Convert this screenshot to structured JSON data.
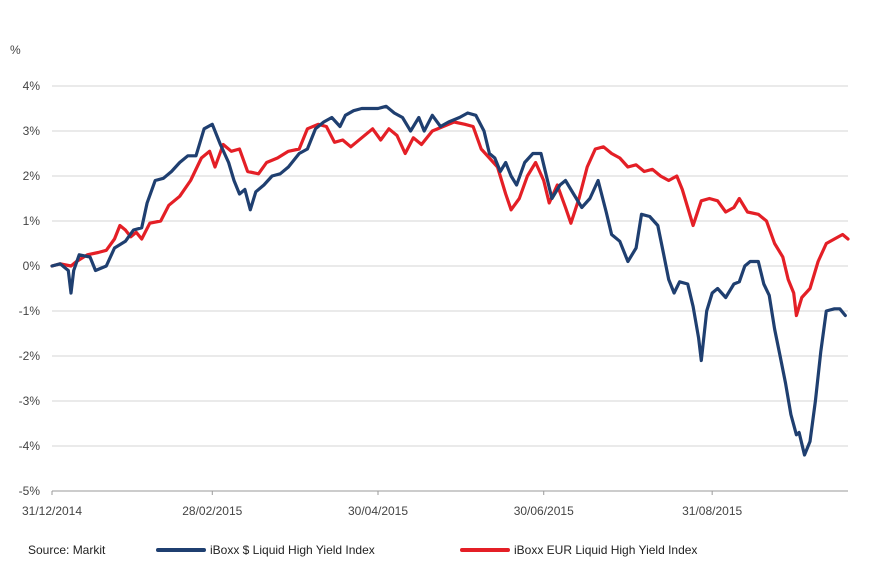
{
  "chart_data": {
    "type": "line",
    "title": "",
    "ylabel": "",
    "unit_label": "%",
    "ylim": [
      -5,
      4
    ],
    "yticks": [
      "4%",
      "3%",
      "2%",
      "1%",
      "0%",
      "-1%",
      "-2%",
      "-3%",
      "-4%",
      "-5%"
    ],
    "xlim": [
      "2014-12-31",
      "2015-10-20"
    ],
    "xticks": [
      "31/12/2014",
      "28/02/2015",
      "30/04/2015",
      "30/06/2015",
      "31/08/2015"
    ],
    "xtick_dates": [
      "2014-12-31",
      "2015-02-28",
      "2015-04-30",
      "2015-06-30",
      "2015-08-31"
    ],
    "grid": "horizontal",
    "source": "Source: Markit",
    "series": [
      {
        "name": "iBoxx $ Liquid High Yield Index",
        "color": "#1f3f70",
        "points": [
          [
            "2014-12-31",
            0.0
          ],
          [
            "2015-01-03",
            0.05
          ],
          [
            "2015-01-06",
            -0.1
          ],
          [
            "2015-01-07",
            -0.6
          ],
          [
            "2015-01-08",
            -0.1
          ],
          [
            "2015-01-10",
            0.25
          ],
          [
            "2015-01-14",
            0.2
          ],
          [
            "2015-01-16",
            -0.1
          ],
          [
            "2015-01-20",
            0.0
          ],
          [
            "2015-01-23",
            0.4
          ],
          [
            "2015-01-27",
            0.55
          ],
          [
            "2015-01-30",
            0.8
          ],
          [
            "2015-02-02",
            0.85
          ],
          [
            "2015-02-04",
            1.4
          ],
          [
            "2015-02-07",
            1.9
          ],
          [
            "2015-02-10",
            1.95
          ],
          [
            "2015-02-13",
            2.1
          ],
          [
            "2015-02-16",
            2.3
          ],
          [
            "2015-02-19",
            2.45
          ],
          [
            "2015-02-22",
            2.45
          ],
          [
            "2015-02-25",
            3.05
          ],
          [
            "2015-02-28",
            3.15
          ],
          [
            "2015-03-03",
            2.7
          ],
          [
            "2015-03-06",
            2.3
          ],
          [
            "2015-03-08",
            1.9
          ],
          [
            "2015-03-10",
            1.6
          ],
          [
            "2015-03-12",
            1.7
          ],
          [
            "2015-03-14",
            1.25
          ],
          [
            "2015-03-16",
            1.65
          ],
          [
            "2015-03-19",
            1.8
          ],
          [
            "2015-03-22",
            2.0
          ],
          [
            "2015-03-25",
            2.05
          ],
          [
            "2015-03-28",
            2.2
          ],
          [
            "2015-04-01",
            2.5
          ],
          [
            "2015-04-04",
            2.6
          ],
          [
            "2015-04-07",
            3.05
          ],
          [
            "2015-04-10",
            3.2
          ],
          [
            "2015-04-13",
            3.3
          ],
          [
            "2015-04-16",
            3.1
          ],
          [
            "2015-04-18",
            3.35
          ],
          [
            "2015-04-21",
            3.45
          ],
          [
            "2015-04-24",
            3.5
          ],
          [
            "2015-04-27",
            3.5
          ],
          [
            "2015-04-30",
            3.5
          ],
          [
            "2015-05-03",
            3.55
          ],
          [
            "2015-05-06",
            3.4
          ],
          [
            "2015-05-09",
            3.3
          ],
          [
            "2015-05-12",
            3.0
          ],
          [
            "2015-05-15",
            3.3
          ],
          [
            "2015-05-17",
            3.0
          ],
          [
            "2015-05-20",
            3.35
          ],
          [
            "2015-05-23",
            3.1
          ],
          [
            "2015-05-26",
            3.2
          ],
          [
            "2015-05-30",
            3.3
          ],
          [
            "2015-06-02",
            3.4
          ],
          [
            "2015-06-05",
            3.35
          ],
          [
            "2015-06-08",
            3.0
          ],
          [
            "2015-06-10",
            2.5
          ],
          [
            "2015-06-12",
            2.4
          ],
          [
            "2015-06-14",
            2.1
          ],
          [
            "2015-06-16",
            2.3
          ],
          [
            "2015-06-18",
            2.0
          ],
          [
            "2015-06-20",
            1.8
          ],
          [
            "2015-06-23",
            2.3
          ],
          [
            "2015-06-26",
            2.5
          ],
          [
            "2015-06-29",
            2.5
          ],
          [
            "2015-07-01",
            2.0
          ],
          [
            "2015-07-03",
            1.5
          ],
          [
            "2015-07-06",
            1.8
          ],
          [
            "2015-07-08",
            1.9
          ],
          [
            "2015-07-11",
            1.6
          ],
          [
            "2015-07-14",
            1.3
          ],
          [
            "2015-07-17",
            1.5
          ],
          [
            "2015-07-20",
            1.9
          ],
          [
            "2015-07-23",
            1.2
          ],
          [
            "2015-07-25",
            0.7
          ],
          [
            "2015-07-28",
            0.55
          ],
          [
            "2015-07-31",
            0.1
          ],
          [
            "2015-08-03",
            0.4
          ],
          [
            "2015-08-05",
            1.15
          ],
          [
            "2015-08-08",
            1.1
          ],
          [
            "2015-08-11",
            0.9
          ],
          [
            "2015-08-13",
            0.3
          ],
          [
            "2015-08-15",
            -0.3
          ],
          [
            "2015-08-17",
            -0.6
          ],
          [
            "2015-08-19",
            -0.35
          ],
          [
            "2015-08-22",
            -0.4
          ],
          [
            "2015-08-24",
            -0.9
          ],
          [
            "2015-08-26",
            -1.6
          ],
          [
            "2015-08-27",
            -2.1
          ],
          [
            "2015-08-29",
            -1.0
          ],
          [
            "2015-08-31",
            -0.6
          ],
          [
            "2015-09-02",
            -0.5
          ],
          [
            "2015-09-05",
            -0.7
          ],
          [
            "2015-09-08",
            -0.4
          ],
          [
            "2015-09-10",
            -0.35
          ],
          [
            "2015-09-12",
            0.0
          ],
          [
            "2015-09-14",
            0.1
          ],
          [
            "2015-09-17",
            0.1
          ],
          [
            "2015-09-19",
            -0.4
          ],
          [
            "2015-09-21",
            -0.65
          ],
          [
            "2015-09-23",
            -1.4
          ],
          [
            "2015-09-25",
            -2.0
          ],
          [
            "2015-09-27",
            -2.6
          ],
          [
            "2015-09-29",
            -3.3
          ],
          [
            "2015-10-01",
            -3.75
          ],
          [
            "2015-10-02",
            -3.7
          ],
          [
            "2015-10-04",
            -4.2
          ],
          [
            "2015-10-06",
            -3.9
          ],
          [
            "2015-10-08",
            -3.0
          ],
          [
            "2015-10-10",
            -1.9
          ],
          [
            "2015-10-12",
            -1.0
          ],
          [
            "2015-10-15",
            -0.95
          ],
          [
            "2015-10-17",
            -0.95
          ],
          [
            "2015-10-19",
            -1.1
          ]
        ]
      },
      {
        "name": "iBoxx EUR Liquid High Yield Index",
        "color": "#e41f26",
        "points": [
          [
            "2014-12-31",
            0.0
          ],
          [
            "2015-01-03",
            0.05
          ],
          [
            "2015-01-07",
            0.0
          ],
          [
            "2015-01-09",
            0.1
          ],
          [
            "2015-01-13",
            0.25
          ],
          [
            "2015-01-17",
            0.3
          ],
          [
            "2015-01-20",
            0.35
          ],
          [
            "2015-01-23",
            0.6
          ],
          [
            "2015-01-25",
            0.9
          ],
          [
            "2015-01-27",
            0.8
          ],
          [
            "2015-01-29",
            0.65
          ],
          [
            "2015-01-31",
            0.75
          ],
          [
            "2015-02-02",
            0.6
          ],
          [
            "2015-02-05",
            0.95
          ],
          [
            "2015-02-09",
            1.0
          ],
          [
            "2015-02-12",
            1.35
          ],
          [
            "2015-02-16",
            1.55
          ],
          [
            "2015-02-20",
            1.9
          ],
          [
            "2015-02-24",
            2.4
          ],
          [
            "2015-02-27",
            2.55
          ],
          [
            "2015-03-01",
            2.2
          ],
          [
            "2015-03-04",
            2.7
          ],
          [
            "2015-03-07",
            2.55
          ],
          [
            "2015-03-10",
            2.6
          ],
          [
            "2015-03-13",
            2.1
          ],
          [
            "2015-03-17",
            2.05
          ],
          [
            "2015-03-20",
            2.3
          ],
          [
            "2015-03-24",
            2.4
          ],
          [
            "2015-03-28",
            2.55
          ],
          [
            "2015-04-01",
            2.6
          ],
          [
            "2015-04-04",
            3.05
          ],
          [
            "2015-04-08",
            3.15
          ],
          [
            "2015-04-11",
            3.1
          ],
          [
            "2015-04-14",
            2.75
          ],
          [
            "2015-04-17",
            2.8
          ],
          [
            "2015-04-20",
            2.65
          ],
          [
            "2015-04-24",
            2.85
          ],
          [
            "2015-04-28",
            3.05
          ],
          [
            "2015-05-01",
            2.8
          ],
          [
            "2015-05-04",
            3.05
          ],
          [
            "2015-05-07",
            2.9
          ],
          [
            "2015-05-10",
            2.5
          ],
          [
            "2015-05-13",
            2.85
          ],
          [
            "2015-05-16",
            2.7
          ],
          [
            "2015-05-20",
            3.0
          ],
          [
            "2015-05-24",
            3.1
          ],
          [
            "2015-05-28",
            3.2
          ],
          [
            "2015-06-01",
            3.15
          ],
          [
            "2015-06-04",
            3.1
          ],
          [
            "2015-06-07",
            2.6
          ],
          [
            "2015-06-10",
            2.4
          ],
          [
            "2015-06-13",
            2.2
          ],
          [
            "2015-06-16",
            1.6
          ],
          [
            "2015-06-18",
            1.25
          ],
          [
            "2015-06-21",
            1.5
          ],
          [
            "2015-06-24",
            2.0
          ],
          [
            "2015-06-27",
            2.3
          ],
          [
            "2015-06-30",
            1.9
          ],
          [
            "2015-07-02",
            1.4
          ],
          [
            "2015-07-05",
            1.8
          ],
          [
            "2015-07-08",
            1.3
          ],
          [
            "2015-07-10",
            0.95
          ],
          [
            "2015-07-13",
            1.5
          ],
          [
            "2015-07-16",
            2.2
          ],
          [
            "2015-07-19",
            2.6
          ],
          [
            "2015-07-22",
            2.65
          ],
          [
            "2015-07-25",
            2.5
          ],
          [
            "2015-07-28",
            2.4
          ],
          [
            "2015-07-31",
            2.2
          ],
          [
            "2015-08-03",
            2.25
          ],
          [
            "2015-08-06",
            2.1
          ],
          [
            "2015-08-09",
            2.15
          ],
          [
            "2015-08-12",
            2.0
          ],
          [
            "2015-08-15",
            1.9
          ],
          [
            "2015-08-18",
            2.0
          ],
          [
            "2015-08-20",
            1.7
          ],
          [
            "2015-08-22",
            1.3
          ],
          [
            "2015-08-24",
            0.9
          ],
          [
            "2015-08-27",
            1.45
          ],
          [
            "2015-08-30",
            1.5
          ],
          [
            "2015-09-02",
            1.45
          ],
          [
            "2015-09-05",
            1.2
          ],
          [
            "2015-09-08",
            1.3
          ],
          [
            "2015-09-10",
            1.5
          ],
          [
            "2015-09-13",
            1.2
          ],
          [
            "2015-09-17",
            1.15
          ],
          [
            "2015-09-20",
            1.0
          ],
          [
            "2015-09-23",
            0.5
          ],
          [
            "2015-09-26",
            0.2
          ],
          [
            "2015-09-28",
            -0.3
          ],
          [
            "2015-09-30",
            -0.6
          ],
          [
            "2015-10-01",
            -1.1
          ],
          [
            "2015-10-03",
            -0.7
          ],
          [
            "2015-10-06",
            -0.5
          ],
          [
            "2015-10-09",
            0.1
          ],
          [
            "2015-10-12",
            0.5
          ],
          [
            "2015-10-15",
            0.6
          ],
          [
            "2015-10-18",
            0.7
          ],
          [
            "2015-10-20",
            0.6
          ]
        ]
      }
    ]
  }
}
